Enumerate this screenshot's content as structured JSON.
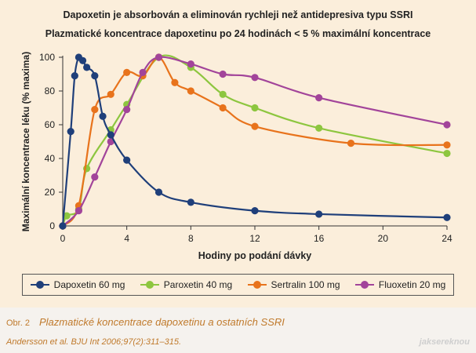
{
  "header": {
    "title": "Dapoxetin je absorbován a eliminován rychleji než antidepresiva typu SSRI",
    "subtitle": "Plazmatické koncentrace dapoxetinu po 24 hodinách < 5 % maximální koncentrace"
  },
  "chart_data": {
    "type": "line",
    "xlabel": "Hodiny po podání dávky",
    "ylabel": "Maximální koncentrace léku (% maxima)",
    "xlim": [
      0,
      24
    ],
    "ylim": [
      0,
      100
    ],
    "x_ticks": [
      "0",
      "4",
      "8",
      "12",
      "16",
      "20",
      "24"
    ],
    "y_ticks": [
      "0",
      "20",
      "40",
      "60",
      "80",
      "100"
    ],
    "grid": false,
    "legend_position": "bottom",
    "series": [
      {
        "name": "Dapoxetin 60 mg",
        "color": "#1f3f7a",
        "points": [
          [
            0,
            0
          ],
          [
            0.5,
            56
          ],
          [
            0.75,
            89
          ],
          [
            1,
            100
          ],
          [
            1.25,
            98
          ],
          [
            1.5,
            94
          ],
          [
            2,
            89
          ],
          [
            2.5,
            65
          ],
          [
            3,
            54
          ],
          [
            4,
            39
          ],
          [
            6,
            20
          ],
          [
            8,
            14
          ],
          [
            12,
            9
          ],
          [
            16,
            7
          ],
          [
            24,
            5
          ]
        ]
      },
      {
        "name": "Paroxetin 40 mg",
        "color": "#8dc63f",
        "points": [
          [
            0,
            0
          ],
          [
            0.25,
            6
          ],
          [
            1,
            10
          ],
          [
            1.5,
            34
          ],
          [
            3,
            57
          ],
          [
            4,
            72
          ],
          [
            6,
            100
          ],
          [
            8,
            94
          ],
          [
            10,
            78
          ],
          [
            12,
            70
          ],
          [
            16,
            58
          ],
          [
            24,
            43
          ]
        ]
      },
      {
        "name": "Sertralin 100 mg",
        "color": "#e8731c",
        "points": [
          [
            0,
            0
          ],
          [
            1,
            12
          ],
          [
            2,
            69
          ],
          [
            3,
            78
          ],
          [
            4,
            91
          ],
          [
            5,
            89
          ],
          [
            6,
            100
          ],
          [
            7,
            85
          ],
          [
            8,
            80
          ],
          [
            10,
            70
          ],
          [
            12,
            59
          ],
          [
            18,
            49
          ],
          [
            24,
            48
          ]
        ]
      },
      {
        "name": "Fluoxetin 20 mg",
        "color": "#a2449a",
        "points": [
          [
            0,
            0
          ],
          [
            1,
            9
          ],
          [
            2,
            29
          ],
          [
            3,
            50
          ],
          [
            4,
            69
          ],
          [
            5,
            91
          ],
          [
            6,
            100
          ],
          [
            8,
            96
          ],
          [
            10,
            90
          ],
          [
            12,
            88
          ],
          [
            16,
            76
          ],
          [
            24,
            60
          ]
        ]
      }
    ]
  },
  "footer": {
    "figure_number": "Obr. 2",
    "caption": "Plazmatické koncentrace dapoxetinu a ostatních SSRI",
    "citation": "Andersson et al. BJU Int 2006;97(2):311–315.",
    "watermark": "jaksereknou"
  }
}
